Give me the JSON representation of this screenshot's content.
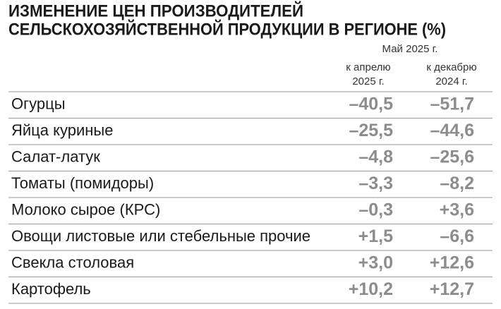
{
  "header": {
    "title_line1": "ИЗМЕНЕНИЕ ЦЕН ПРОИЗВОДИТЕЛЕЙ",
    "title_line2": "СЕЛЬСКОХОЗЯЙСТВЕННОЙ ПРОДУКЦИИ В РЕГИОНЕ (%)"
  },
  "table": {
    "period": "Май 2025 г.",
    "columns": [
      [
        "к апрелю",
        "2025 г."
      ],
      [
        "к декабрю",
        "2024 г."
      ]
    ],
    "rows": [
      [
        "Огурцы",
        "–40,5",
        "–51,7"
      ],
      [
        "Яйца куриные",
        "–25,5",
        "–44,6"
      ],
      [
        "Салат-латук",
        "–4,8",
        "–25,6"
      ],
      [
        "Томаты (помидоры)",
        "–3,3",
        "–8,2"
      ],
      [
        "Молоко сырое (КРС)",
        "–0,3",
        "+3,6"
      ],
      [
        "Овощи листовые или стебельные прочие",
        "+1,5",
        "–6,6"
      ],
      [
        "Свекла столовая",
        "+3,0",
        "+12,6"
      ],
      [
        "Картофель",
        "+10,2",
        "+12,7"
      ]
    ]
  }
}
